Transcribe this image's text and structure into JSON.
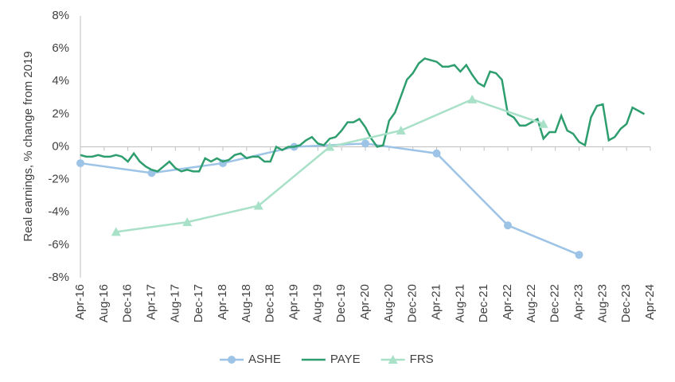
{
  "chart_data": {
    "type": "line",
    "y_label": "Real earnings, % change from 2019",
    "ylim": [
      -8,
      8
    ],
    "yticks": [
      {
        "value": -8,
        "label": "-8%"
      },
      {
        "value": -6,
        "label": "-6%"
      },
      {
        "value": -4,
        "label": "-4%"
      },
      {
        "value": -2,
        "label": "-2%"
      },
      {
        "value": 0,
        "label": "0%"
      },
      {
        "value": 2,
        "label": "2%"
      },
      {
        "value": 4,
        "label": "4%"
      },
      {
        "value": 6,
        "label": "6%"
      },
      {
        "value": 8,
        "label": "8%"
      }
    ],
    "categories": [
      "Apr-16",
      null,
      null,
      null,
      "Aug-16",
      null,
      null,
      null,
      "Dec-16",
      null,
      null,
      null,
      "Apr-17",
      null,
      null,
      null,
      "Aug-17",
      null,
      null,
      null,
      "Dec-17",
      null,
      null,
      null,
      "Apr-18",
      null,
      null,
      null,
      "Aug-18",
      null,
      null,
      null,
      "Dec-18",
      null,
      null,
      null,
      "Apr-19",
      null,
      null,
      null,
      "Aug-19",
      null,
      null,
      null,
      "Dec-19",
      null,
      null,
      null,
      "Apr-20",
      null,
      null,
      null,
      "Aug-20",
      null,
      null,
      null,
      "Dec-20",
      null,
      null,
      null,
      "Apr-21",
      null,
      null,
      null,
      "Aug-21",
      null,
      null,
      null,
      "Dec-21",
      null,
      null,
      null,
      "Apr-22",
      null,
      null,
      null,
      "Aug-22",
      null,
      null,
      null,
      "Dec-22",
      null,
      null,
      null,
      "Apr-23",
      null,
      null,
      null,
      "Aug-23",
      null,
      null,
      null,
      "Dec-23",
      null,
      null,
      null,
      "Apr-24"
    ],
    "series": [
      {
        "name": "ASHE",
        "color": "#9dc3e6",
        "marker": "circle",
        "x": [
          "Apr-16",
          "Apr-17",
          "Apr-18",
          "Apr-19",
          "Apr-20",
          "Apr-21",
          "Apr-22",
          "Apr-23"
        ],
        "values": [
          -1.0,
          -1.6,
          -1.0,
          0.0,
          0.2,
          -0.4,
          -4.8,
          -6.6
        ]
      },
      {
        "name": "PAYE",
        "color": "#2e9e6e",
        "marker": "none",
        "values": [
          -0.5,
          -0.6,
          -0.6,
          -0.5,
          -0.6,
          -0.6,
          -0.5,
          -0.6,
          -0.9,
          -0.4,
          -0.9,
          -1.2,
          -1.4,
          -1.5,
          -1.2,
          -0.9,
          -1.3,
          -1.5,
          -1.4,
          -1.5,
          -1.5,
          -0.7,
          -0.9,
          -0.7,
          -0.9,
          -0.8,
          -0.5,
          -0.4,
          -0.7,
          -0.6,
          -0.6,
          -0.9,
          -0.9,
          0.0,
          -0.2,
          0.0,
          0.0,
          0.1,
          0.4,
          0.6,
          0.2,
          0.1,
          0.5,
          0.6,
          1.0,
          1.5,
          1.5,
          1.7,
          1.2,
          0.5,
          0.0,
          0.1,
          1.6,
          2.1,
          3.1,
          4.1,
          4.5,
          5.1,
          5.4,
          5.3,
          5.2,
          4.9,
          4.9,
          5.0,
          4.6,
          5.0,
          4.4,
          3.9,
          3.7,
          4.6,
          4.5,
          4.1,
          2.0,
          1.8,
          1.3,
          1.3,
          1.5,
          1.7,
          0.5,
          0.9,
          0.9,
          1.9,
          1.0,
          0.8,
          0.3,
          0.1,
          1.8,
          2.5,
          2.6,
          0.4,
          0.6,
          1.1,
          1.4,
          2.4,
          2.2,
          2.0,
          null
        ]
      },
      {
        "name": "FRS",
        "color": "#a8e0c8",
        "marker": "triangle",
        "x": [
          "Oct-16",
          "Oct-17",
          "Oct-18",
          "Oct-19",
          "Oct-20",
          "Oct-21",
          "Oct-22"
        ],
        "values": [
          -5.2,
          -4.6,
          -3.6,
          0.0,
          1.0,
          2.9,
          1.4
        ]
      }
    ],
    "legend": "bottom"
  }
}
